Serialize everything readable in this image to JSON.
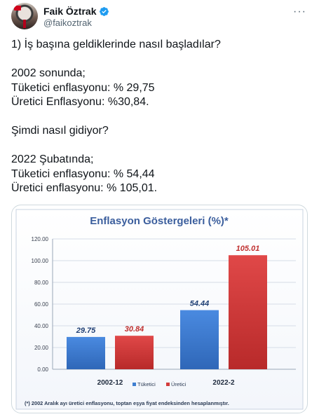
{
  "author": {
    "name": "Faik Öztrak",
    "handle": "@faikoztrak"
  },
  "icons": {
    "verified": "verified-badge-icon",
    "more": "more-options-icon"
  },
  "colors": {
    "verified": "#1d9bf0",
    "tuketici": "#3f7fd1",
    "uretici": "#d33b3b",
    "chart_title": "#3b5e9d"
  },
  "tweet": {
    "lines": [
      "1) İş başına geldiklerinde nasıl başladılar?",
      "",
      "2002 sonunda;",
      "Tüketici enflasyonu: % 29,75",
      "Üretici Enflasyonu: %30,84.",
      "",
      "Şimdi nasıl gidiyor?",
      "",
      "2022 Şubatında;",
      "Tüketici enflasyonu: % 54,44",
      "Üretici enflasyonu: % 105,01."
    ]
  },
  "chart_data": {
    "type": "bar",
    "title": "Enflasyon Göstergeleri (%)*",
    "categories": [
      "2002-12",
      "2022-2"
    ],
    "series": [
      {
        "name": "Tüketici",
        "values": [
          29.75,
          54.44
        ]
      },
      {
        "name": "Üretici",
        "values": [
          30.84,
          105.01
        ]
      }
    ],
    "data_labels": [
      [
        "29.75",
        "54.44"
      ],
      [
        "30.84",
        "105.01"
      ]
    ],
    "yticks": [
      "0.00",
      "20.00",
      "40.00",
      "60.00",
      "80.00",
      "100.00",
      "120.00"
    ],
    "ylim": [
      0,
      120
    ],
    "grid": true,
    "legend": "bottom",
    "footnote": "(*) 2002 Aralık ayı üretici enflasyonu, toptan eşya fiyat endeksinden hesaplanmıştır."
  }
}
